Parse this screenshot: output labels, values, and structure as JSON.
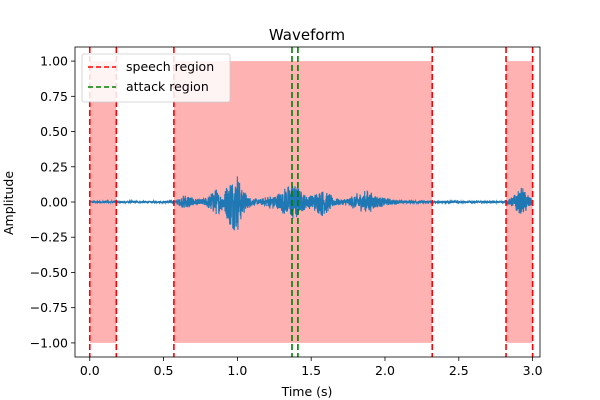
{
  "chart_data": {
    "type": "line",
    "title": "Waveform",
    "xlabel": "Time (s)",
    "ylabel": "Amplitude",
    "xlim": [
      -0.1,
      3.05
    ],
    "ylim": [
      -1.1,
      1.1
    ],
    "x_ticks": [
      0.0,
      0.5,
      1.0,
      1.5,
      2.0,
      2.5,
      3.0
    ],
    "y_ticks": [
      -1.0,
      -0.75,
      -0.5,
      -0.25,
      0.0,
      0.25,
      0.5,
      0.75,
      1.0
    ],
    "x_tick_labels": [
      "0.0",
      "0.5",
      "1.0",
      "1.5",
      "2.0",
      "2.5",
      "3.0"
    ],
    "y_tick_labels": [
      "−1.00",
      "−0.75",
      "−0.50",
      "−0.25",
      "0.00",
      "0.25",
      "0.50",
      "0.75",
      "1.00"
    ],
    "colors": {
      "waveform": "#1f77b4",
      "speech": "#ff0000",
      "speech_fill": "#ff0000",
      "attack": "#008000"
    },
    "speech_regions": [
      [
        0.0,
        0.18
      ],
      [
        0.57,
        2.32
      ],
      [
        2.82,
        3.0
      ]
    ],
    "attack_region": [
      1.37,
      1.41
    ],
    "waveform_envelope": [
      [
        0.0,
        0.008
      ],
      [
        0.05,
        0.008
      ],
      [
        0.1,
        0.008
      ],
      [
        0.15,
        0.008
      ],
      [
        0.2,
        0.008
      ],
      [
        0.25,
        0.008
      ],
      [
        0.3,
        0.008
      ],
      [
        0.35,
        0.008
      ],
      [
        0.4,
        0.008
      ],
      [
        0.45,
        0.008
      ],
      [
        0.5,
        0.008
      ],
      [
        0.55,
        0.01
      ],
      [
        0.58,
        0.015
      ],
      [
        0.62,
        0.04
      ],
      [
        0.66,
        0.06
      ],
      [
        0.7,
        0.03
      ],
      [
        0.74,
        0.02
      ],
      [
        0.78,
        0.03
      ],
      [
        0.82,
        0.07
      ],
      [
        0.86,
        0.1
      ],
      [
        0.9,
        0.06
      ],
      [
        0.94,
        0.16
      ],
      [
        0.97,
        0.2
      ],
      [
        1.0,
        0.22
      ],
      [
        1.03,
        0.13
      ],
      [
        1.06,
        0.06
      ],
      [
        1.1,
        0.03
      ],
      [
        1.15,
        0.02
      ],
      [
        1.2,
        0.04
      ],
      [
        1.25,
        0.06
      ],
      [
        1.3,
        0.08
      ],
      [
        1.34,
        0.12
      ],
      [
        1.38,
        0.16
      ],
      [
        1.42,
        0.1
      ],
      [
        1.46,
        0.05
      ],
      [
        1.5,
        0.05
      ],
      [
        1.54,
        0.08
      ],
      [
        1.58,
        0.11
      ],
      [
        1.62,
        0.07
      ],
      [
        1.66,
        0.03
      ],
      [
        1.7,
        0.02
      ],
      [
        1.75,
        0.03
      ],
      [
        1.8,
        0.06
      ],
      [
        1.84,
        0.07
      ],
      [
        1.88,
        0.09
      ],
      [
        1.92,
        0.06
      ],
      [
        1.96,
        0.04
      ],
      [
        2.0,
        0.03
      ],
      [
        2.05,
        0.02
      ],
      [
        2.1,
        0.015
      ],
      [
        2.15,
        0.012
      ],
      [
        2.2,
        0.01
      ],
      [
        2.25,
        0.01
      ],
      [
        2.3,
        0.008
      ],
      [
        2.35,
        0.008
      ],
      [
        2.4,
        0.008
      ],
      [
        2.45,
        0.008
      ],
      [
        2.5,
        0.008
      ],
      [
        2.55,
        0.008
      ],
      [
        2.6,
        0.008
      ],
      [
        2.65,
        0.008
      ],
      [
        2.7,
        0.008
      ],
      [
        2.75,
        0.008
      ],
      [
        2.8,
        0.008
      ],
      [
        2.84,
        0.02
      ],
      [
        2.87,
        0.05
      ],
      [
        2.9,
        0.08
      ],
      [
        2.93,
        0.11
      ],
      [
        2.96,
        0.07
      ],
      [
        3.0,
        0.02
      ]
    ],
    "legend": [
      {
        "label": "speech region",
        "style": "dashed-red"
      },
      {
        "label": "attack region",
        "style": "dashed-green"
      }
    ],
    "legend_location": "upper-left"
  }
}
